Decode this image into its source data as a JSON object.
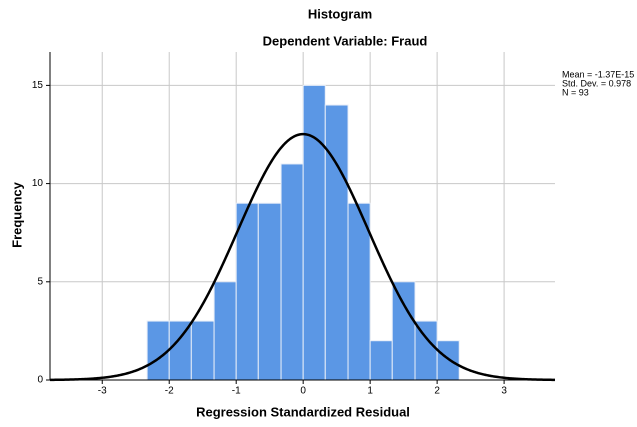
{
  "chart_data": {
    "type": "histogram",
    "title": "Histogram",
    "subtitle": "Dependent Variable: Fraud",
    "xlabel": "Regression Standardized Residual",
    "ylabel": "Frequency",
    "bins": [
      -2.33,
      -2,
      -1.67,
      -1.33,
      -1,
      -0.67,
      -0.33,
      0,
      0.33,
      0.67,
      1,
      1.33,
      1.67,
      2,
      2.33
    ],
    "values": [
      3,
      3,
      3,
      5,
      9,
      9,
      11,
      15,
      14,
      9,
      2,
      5,
      3,
      2
    ],
    "color": "#5b97e5",
    "xlim": [
      -3.78,
      3.76
    ],
    "ylim": [
      0,
      16.7
    ],
    "xticks": [
      -3,
      -2,
      -1,
      0,
      1,
      2,
      3
    ],
    "yticks": [
      0,
      5,
      10,
      15
    ],
    "grid": true,
    "curve": {
      "mean": -1.37e-15,
      "sd": 0.978,
      "n": 93
    },
    "stats": [
      "Mean = -1.37E-15",
      "Std. Dev. = 0.978",
      "N = 93"
    ]
  }
}
